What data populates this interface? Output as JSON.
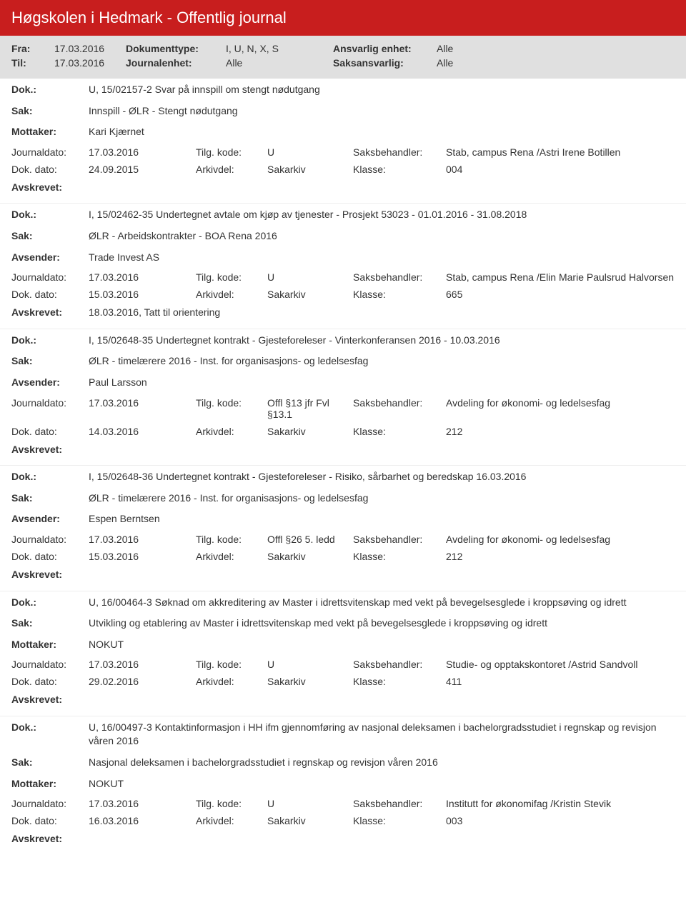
{
  "header": {
    "title": "Høgskolen i Hedmark - Offentlig journal",
    "fra_label": "Fra:",
    "fra": "17.03.2016",
    "til_label": "Til:",
    "til": "17.03.2016",
    "dokumenttype_label": "Dokumenttype:",
    "dokumenttype": "I, U, N, X, S",
    "journalenhet_label": "Journalenhet:",
    "journalenhet": "Alle",
    "ansvarlig_label": "Ansvarlig enhet:",
    "ansvarlig": "Alle",
    "saksansvarlig_label": "Saksansvarlig:",
    "saksansvarlig": "Alle"
  },
  "labels": {
    "dok": "Dok.:",
    "sak": "Sak:",
    "mottaker": "Mottaker:",
    "avsender": "Avsender:",
    "journaldato": "Journaldato:",
    "dokdato": "Dok. dato:",
    "tilgkode": "Tilg. kode:",
    "arkivdel": "Arkivdel:",
    "saksbehandler": "Saksbehandler:",
    "klasse": "Klasse:",
    "avskrevet": "Avskrevet:"
  },
  "entries": [
    {
      "dok": "U, 15/02157-2 Svar på innspill om stengt nødutgang",
      "sak": "Innspill - ØLR - Stengt nødutgang",
      "party_label": "Mottaker:",
      "party": "Kari Kjærnet",
      "journaldato": "17.03.2016",
      "tilgkode": "U",
      "saksbehandler": "Stab, campus Rena /Astri Irene Botillen",
      "dokdato": "24.09.2015",
      "arkivdel": "Sakarkiv",
      "klasse": "004",
      "avskrevet": ""
    },
    {
      "dok": "I, 15/02462-35 Undertegnet avtale om kjøp av tjenester - Prosjekt 53023 - 01.01.2016 - 31.08.2018",
      "sak": "ØLR - Arbeidskontrakter - BOA Rena 2016",
      "party_label": "Avsender:",
      "party": "Trade Invest AS",
      "journaldato": "17.03.2016",
      "tilgkode": "U",
      "saksbehandler": "Stab, campus Rena /Elin Marie Paulsrud Halvorsen",
      "dokdato": "15.03.2016",
      "arkivdel": "Sakarkiv",
      "klasse": "665",
      "avskrevet": "18.03.2016, Tatt til orientering"
    },
    {
      "dok": "I, 15/02648-35 Undertegnet kontrakt - Gjesteforeleser - Vinterkonferansen 2016 - 10.03.2016",
      "sak": "ØLR - timelærere 2016 - Inst. for organisasjons- og ledelsesfag",
      "party_label": "Avsender:",
      "party": "Paul Larsson",
      "journaldato": "17.03.2016",
      "tilgkode": "Offl §13 jfr Fvl §13.1",
      "saksbehandler": "Avdeling for økonomi- og ledelsesfag",
      "dokdato": "14.03.2016",
      "arkivdel": "Sakarkiv",
      "klasse": "212",
      "avskrevet": ""
    },
    {
      "dok": "I, 15/02648-36 Undertegnet kontrakt - Gjesteforeleser - Risiko, sårbarhet og beredskap 16.03.2016",
      "sak": "ØLR - timelærere 2016 - Inst. for organisasjons- og ledelsesfag",
      "party_label": "Avsender:",
      "party": "Espen Berntsen",
      "journaldato": "17.03.2016",
      "tilgkode": "Offl §26 5. ledd",
      "saksbehandler": "Avdeling for økonomi- og ledelsesfag",
      "dokdato": "15.03.2016",
      "arkivdel": "Sakarkiv",
      "klasse": "212",
      "avskrevet": ""
    },
    {
      "dok": "U, 16/00464-3 Søknad om akkreditering av Master i idrettsvitenskap med vekt på bevegelsesglede i kroppsøving og idrett",
      "sak": "Utvikling og etablering av Master i idrettsvitenskap med vekt på bevegelsesglede i kroppsøving og idrett",
      "party_label": "Mottaker:",
      "party": "NOKUT",
      "journaldato": "17.03.2016",
      "tilgkode": "U",
      "saksbehandler": "Studie- og opptakskontoret /Astrid Sandvoll",
      "dokdato": "29.02.2016",
      "arkivdel": "Sakarkiv",
      "klasse": "411",
      "avskrevet": ""
    },
    {
      "dok": "U, 16/00497-3 Kontaktinformasjon i HH ifm gjennomføring av nasjonal deleksamen i bachelorgradsstudiet i regnskap og revisjon våren 2016",
      "sak": "Nasjonal deleksamen i bachelorgradsstudiet i regnskap og revisjon våren 2016",
      "party_label": "Mottaker:",
      "party": "NOKUT",
      "journaldato": "17.03.2016",
      "tilgkode": "U",
      "saksbehandler": "Institutt for økonomifag /Kristin Stevik",
      "dokdato": "16.03.2016",
      "arkivdel": "Sakarkiv",
      "klasse": "003",
      "avskrevet": ""
    }
  ]
}
